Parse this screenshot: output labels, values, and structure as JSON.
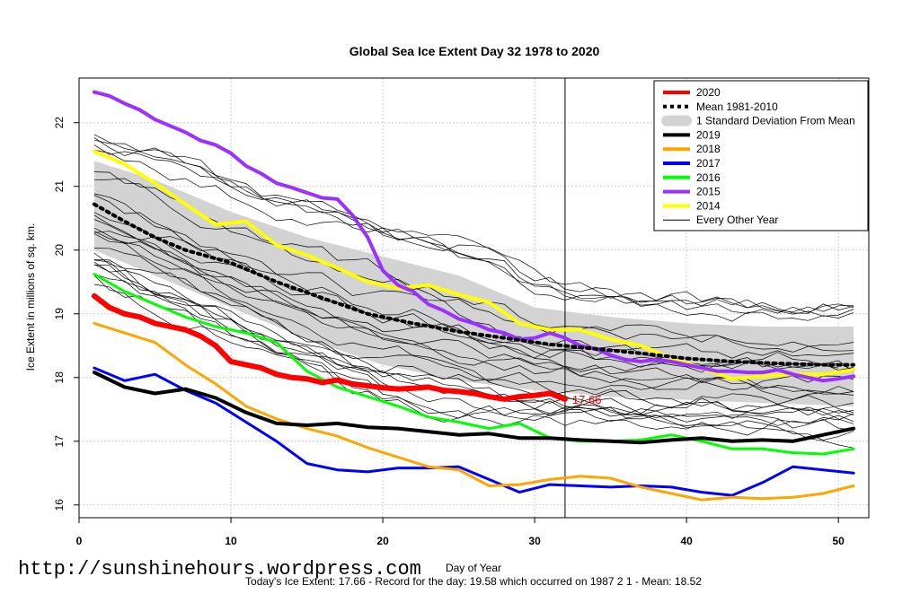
{
  "chart_data": {
    "type": "line",
    "title": "Global Sea Ice Extent Day 32 1978 to 2020",
    "xlabel": "Day of Year",
    "ylabel": "Ice Extent in millions of sq. km.",
    "xlim": [
      0,
      52
    ],
    "ylim": [
      15.8,
      22.7
    ],
    "x_ticks": [
      0,
      10,
      20,
      30,
      40,
      50
    ],
    "y_ticks": [
      16,
      17,
      18,
      19,
      20,
      21,
      22
    ],
    "grid": true,
    "legend_position": "top-right",
    "current_day": 32,
    "current_value_label": "17.66",
    "band": {
      "name": "1 Standard Deviation From Mean",
      "x": [
        1,
        5,
        10,
        15,
        20,
        25,
        30,
        35,
        40,
        45,
        51
      ],
      "upper": [
        21.4,
        21.1,
        20.6,
        20.2,
        19.9,
        19.6,
        19.1,
        18.95,
        18.85,
        18.8,
        18.8
      ],
      "lower": [
        20.0,
        19.6,
        19.1,
        18.6,
        18.2,
        17.95,
        17.8,
        17.7,
        17.65,
        17.6,
        17.55
      ]
    },
    "series": [
      {
        "name": "2020",
        "color": "#ff0000",
        "width": 6,
        "dash": "",
        "x": [
          1,
          2,
          3,
          4,
          5,
          6,
          7,
          8,
          9,
          10,
          11,
          12,
          13,
          14,
          15,
          16,
          17,
          18,
          19,
          20,
          21,
          22,
          23,
          24,
          25,
          26,
          27,
          28,
          29,
          30,
          31,
          32
        ],
        "values": [
          19.28,
          19.1,
          19.0,
          18.95,
          18.85,
          18.8,
          18.75,
          18.65,
          18.5,
          18.25,
          18.2,
          18.15,
          18.05,
          18.0,
          17.98,
          17.92,
          17.96,
          17.9,
          17.87,
          17.84,
          17.82,
          17.83,
          17.85,
          17.8,
          17.78,
          17.75,
          17.7,
          17.66,
          17.7,
          17.72,
          17.75,
          17.66
        ]
      },
      {
        "name": "Mean 1981-2010",
        "color": "#000000",
        "width": 4,
        "dash": "3 5",
        "x": [
          1,
          3,
          5,
          7,
          10,
          13,
          16,
          19,
          22,
          25,
          28,
          31,
          34,
          37,
          40,
          43,
          46,
          49,
          51
        ],
        "values": [
          20.72,
          20.45,
          20.2,
          20.0,
          19.8,
          19.5,
          19.25,
          19.0,
          18.85,
          18.72,
          18.62,
          18.52,
          18.45,
          18.38,
          18.3,
          18.25,
          18.22,
          18.2,
          18.2
        ]
      },
      {
        "name": "2019",
        "color": "#000000",
        "width": 4,
        "dash": "",
        "x": [
          1,
          3,
          5,
          7,
          9,
          11,
          13,
          15,
          17,
          19,
          21,
          23,
          25,
          27,
          29,
          31,
          33,
          35,
          37,
          39,
          41,
          43,
          45,
          47,
          49,
          51
        ],
        "values": [
          18.08,
          17.85,
          17.75,
          17.82,
          17.68,
          17.45,
          17.28,
          17.25,
          17.28,
          17.22,
          17.2,
          17.15,
          17.1,
          17.12,
          17.05,
          17.05,
          17.02,
          17.0,
          16.98,
          17.02,
          17.05,
          17.0,
          17.02,
          17.0,
          17.1,
          17.2
        ]
      },
      {
        "name": "2018",
        "color": "#ffa500",
        "width": 3,
        "dash": "",
        "x": [
          1,
          3,
          5,
          7,
          9,
          11,
          13,
          15,
          17,
          19,
          21,
          23,
          25,
          27,
          29,
          31,
          33,
          35,
          37,
          39,
          41,
          43,
          45,
          47,
          49,
          51
        ],
        "values": [
          18.85,
          18.7,
          18.55,
          18.2,
          17.9,
          17.55,
          17.35,
          17.2,
          17.08,
          16.9,
          16.75,
          16.6,
          16.55,
          16.3,
          16.32,
          16.4,
          16.45,
          16.42,
          16.28,
          16.18,
          16.08,
          16.12,
          16.1,
          16.12,
          16.18,
          16.3
        ]
      },
      {
        "name": "2017",
        "color": "#0000ff",
        "width": 3,
        "dash": "",
        "x": [
          1,
          3,
          5,
          7,
          9,
          11,
          13,
          15,
          17,
          19,
          21,
          23,
          25,
          27,
          29,
          31,
          33,
          35,
          37,
          39,
          41,
          43,
          45,
          47,
          49,
          51
        ],
        "values": [
          18.15,
          17.95,
          18.05,
          17.8,
          17.6,
          17.3,
          17.0,
          16.65,
          16.55,
          16.52,
          16.58,
          16.58,
          16.6,
          16.4,
          16.2,
          16.32,
          16.3,
          16.28,
          16.3,
          16.28,
          16.2,
          16.15,
          16.35,
          16.6,
          16.55,
          16.5
        ]
      },
      {
        "name": "2016",
        "color": "#00ff00",
        "width": 3,
        "dash": "",
        "x": [
          1,
          3,
          5,
          7,
          9,
          11,
          13,
          15,
          17,
          19,
          21,
          23,
          25,
          27,
          29,
          31,
          33,
          35,
          37,
          39,
          41,
          43,
          45,
          47,
          49,
          51
        ],
        "values": [
          19.62,
          19.35,
          19.15,
          18.95,
          18.8,
          18.7,
          18.55,
          18.1,
          17.85,
          17.7,
          17.55,
          17.38,
          17.3,
          17.2,
          17.28,
          17.05,
          17.0,
          17.0,
          17.02,
          17.1,
          17.0,
          16.88,
          16.88,
          16.82,
          16.8,
          16.88
        ]
      },
      {
        "name": "2015",
        "color": "#9b30ff",
        "width": 4,
        "dash": "",
        "x": [
          1,
          2,
          3,
          4,
          5,
          6,
          7,
          8,
          9,
          10,
          11,
          12,
          13,
          14,
          15,
          16,
          17,
          18,
          19,
          20,
          21,
          22,
          23,
          24,
          25,
          26,
          27,
          28,
          29,
          30,
          31,
          32,
          33,
          34,
          35,
          36,
          37,
          38,
          39,
          40,
          41,
          42,
          43,
          44,
          45,
          46,
          47,
          48,
          49,
          50,
          51
        ],
        "values": [
          22.48,
          22.42,
          22.3,
          22.2,
          22.05,
          21.95,
          21.85,
          21.72,
          21.65,
          21.52,
          21.32,
          21.2,
          21.05,
          20.98,
          20.9,
          20.82,
          20.8,
          20.55,
          20.2,
          19.68,
          19.45,
          19.35,
          19.15,
          19.05,
          18.92,
          18.85,
          18.75,
          18.7,
          18.6,
          18.62,
          18.7,
          18.62,
          18.5,
          18.45,
          18.35,
          18.28,
          18.25,
          18.28,
          18.25,
          18.2,
          18.15,
          18.1,
          18.1,
          18.08,
          18.08,
          18.12,
          18.05,
          18.0,
          17.95,
          17.98,
          18.02
        ]
      },
      {
        "name": "2014",
        "color": "#ffff00",
        "width": 4,
        "dash": "",
        "x": [
          1,
          3,
          5,
          7,
          9,
          11,
          13,
          15,
          17,
          19,
          21,
          23,
          25,
          27,
          29,
          31,
          33,
          35,
          37,
          39,
          41,
          43,
          45,
          47,
          49,
          51
        ],
        "values": [
          21.55,
          21.35,
          21.05,
          20.72,
          20.4,
          20.45,
          20.08,
          19.92,
          19.72,
          19.5,
          19.4,
          19.45,
          19.3,
          19.18,
          18.85,
          18.75,
          18.75,
          18.6,
          18.5,
          18.3,
          18.15,
          17.98,
          18.02,
          18.05,
          18.05,
          18.12
        ]
      }
    ],
    "legend": [
      {
        "label": "2020",
        "color": "#ff0000",
        "style": "thick"
      },
      {
        "label": "Mean 1981-2010",
        "color": "#000000",
        "style": "dotted"
      },
      {
        "label": "1 Standard Deviation From Mean",
        "color": "#d3d3d3",
        "style": "band"
      },
      {
        "label": "2019",
        "color": "#000000",
        "style": "thick"
      },
      {
        "label": "2018",
        "color": "#ffa500",
        "style": "thick"
      },
      {
        "label": "2017",
        "color": "#0000ff",
        "style": "thick"
      },
      {
        "label": "2016",
        "color": "#00ff00",
        "style": "thick"
      },
      {
        "label": "2015",
        "color": "#9b30ff",
        "style": "thick"
      },
      {
        "label": "2014",
        "color": "#ffff00",
        "style": "thick"
      },
      {
        "label": "Every Other Year",
        "color": "#000000",
        "style": "thin"
      }
    ]
  },
  "watermark": "http://sunshinehours.wordpress.com",
  "footer": "Today's Ice Extent: 17.66  - Record for the day: 19.58 which occurred on 1987 2 1  - Mean: 18.52"
}
